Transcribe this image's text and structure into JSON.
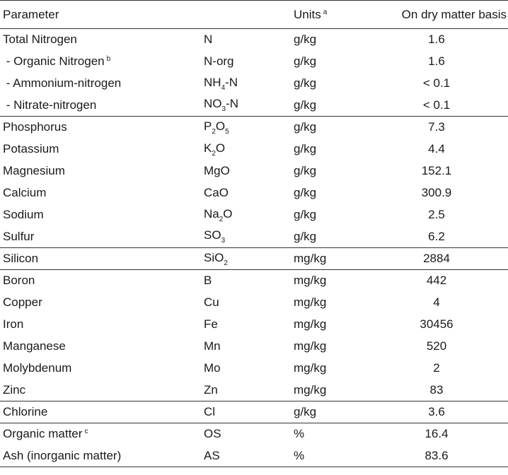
{
  "table": {
    "header": {
      "parameter": "Parameter",
      "units": "Units",
      "units_note": "a",
      "value": "On dry matter basis"
    },
    "groups": [
      [
        {
          "parameter": "Total Nitrogen",
          "symbol": [
            {
              "text": "N"
            }
          ],
          "units": "g/kg",
          "value": 1.6
        },
        {
          "parameter": " - Organic Nitrogen",
          "note": "b",
          "symbol": [
            {
              "text": "N-org"
            }
          ],
          "units": "g/kg",
          "value": 1.6
        },
        {
          "parameter": " - Ammonium-nitrogen",
          "symbol": [
            {
              "text": "NH"
            },
            {
              "sub": "4"
            },
            {
              "text": "-N"
            }
          ],
          "units": "g/kg",
          "value": "< 0.1"
        },
        {
          "parameter": " - Nitrate-nitrogen",
          "symbol": [
            {
              "text": "NO"
            },
            {
              "sub": "3"
            },
            {
              "text": "-N"
            }
          ],
          "units": "g/kg",
          "value": "< 0.1"
        }
      ],
      [
        {
          "parameter": "Phosphorus",
          "symbol": [
            {
              "text": "P"
            },
            {
              "sub": "2"
            },
            {
              "text": "O"
            },
            {
              "sub": "5"
            }
          ],
          "units": "g/kg",
          "value": 7.3
        },
        {
          "parameter": "Potassium",
          "symbol": [
            {
              "text": "K"
            },
            {
              "sub": "2"
            },
            {
              "text": "O"
            }
          ],
          "units": "g/kg",
          "value": 4.4
        },
        {
          "parameter": "Magnesium",
          "symbol": [
            {
              "text": "MgO"
            }
          ],
          "units": "g/kg",
          "value": 152.1
        },
        {
          "parameter": "Calcium",
          "symbol": [
            {
              "text": "CaO"
            }
          ],
          "units": "g/kg",
          "value": 300.9
        },
        {
          "parameter": "Sodium",
          "symbol": [
            {
              "text": "Na"
            },
            {
              "sub": "2"
            },
            {
              "text": "O"
            }
          ],
          "units": "g/kg",
          "value": 2.5
        },
        {
          "parameter": "Sulfur",
          "symbol": [
            {
              "text": "SO"
            },
            {
              "sub": "3"
            }
          ],
          "units": "g/kg",
          "value": 6.2
        }
      ],
      [
        {
          "parameter": "Silicon",
          "symbol": [
            {
              "text": "SiO"
            },
            {
              "sub": "2"
            }
          ],
          "units": "mg/kg",
          "value": 2884
        }
      ],
      [
        {
          "parameter": "Boron",
          "symbol": [
            {
              "text": "B"
            }
          ],
          "units": "mg/kg",
          "value": 442
        },
        {
          "parameter": "Copper",
          "symbol": [
            {
              "text": "Cu"
            }
          ],
          "units": "mg/kg",
          "value": 4
        },
        {
          "parameter": "Iron",
          "symbol": [
            {
              "text": "Fe"
            }
          ],
          "units": "mg/kg",
          "value": 30456
        },
        {
          "parameter": "Manganese",
          "symbol": [
            {
              "text": "Mn"
            }
          ],
          "units": "mg/kg",
          "value": 520
        },
        {
          "parameter": "Molybdenum",
          "symbol": [
            {
              "text": "Mo"
            }
          ],
          "units": "mg/kg",
          "value": 2
        },
        {
          "parameter": "Zinc",
          "symbol": [
            {
              "text": "Zn"
            }
          ],
          "units": "mg/kg",
          "value": 83
        }
      ],
      [
        {
          "parameter": "Chlorine",
          "symbol": [
            {
              "text": "Cl"
            }
          ],
          "units": "g/kg",
          "value": 3.6
        }
      ],
      [
        {
          "parameter": "Organic matter",
          "note": "c",
          "symbol": [
            {
              "text": "OS"
            }
          ],
          "units": "%",
          "value": 16.4
        },
        {
          "parameter": "Ash (inorganic matter)",
          "symbol": [
            {
              "text": "AS"
            }
          ],
          "units": "%",
          "value": 83.6
        }
      ]
    ]
  }
}
